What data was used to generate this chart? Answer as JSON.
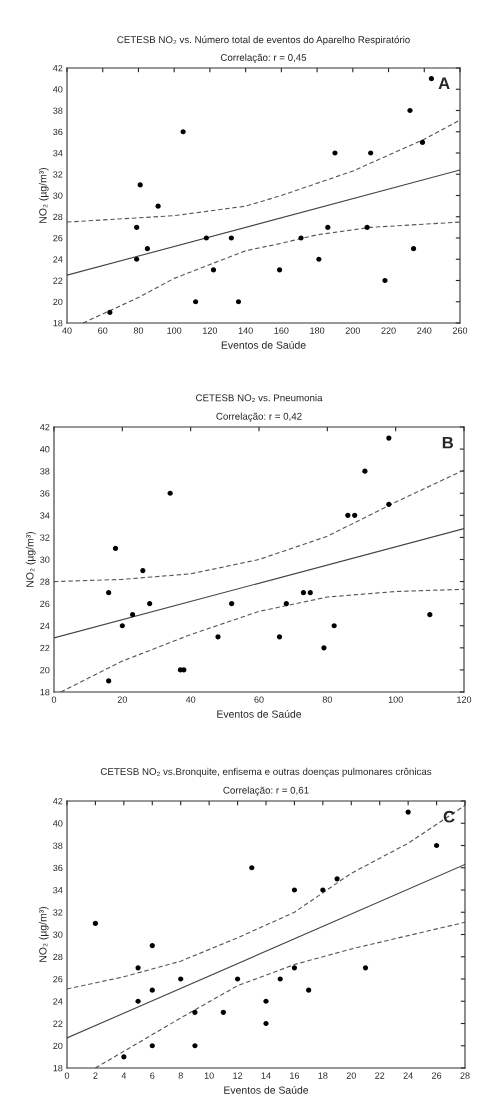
{
  "chart_data": [
    {
      "type": "scatter",
      "title": "CETESB NO₂ vs. Número total de eventos do Aparelho Respiratório",
      "subtitle": "Correlação: r = 0,45",
      "xlabel": "Eventos de Saúde",
      "ylabel": "NO₂ (µg/m³)",
      "annotations": [
        "A"
      ],
      "xlim": [
        40,
        260
      ],
      "xticks": [
        40,
        60,
        80,
        100,
        120,
        140,
        160,
        180,
        200,
        220,
        240,
        260
      ],
      "ylim": [
        18,
        42
      ],
      "yticks": [
        18,
        20,
        22,
        24,
        26,
        28,
        30,
        32,
        34,
        36,
        38,
        40,
        42
      ],
      "series": [
        {
          "marker": "circle",
          "color": "#000000",
          "x": [
            64,
            79,
            79,
            81,
            85,
            91,
            105,
            112,
            118,
            122,
            132,
            136,
            159,
            171,
            181,
            186,
            190,
            208,
            210,
            218,
            232,
            234,
            239,
            244
          ],
          "values": [
            19,
            24,
            27,
            31,
            25,
            29,
            36,
            20,
            26,
            23,
            26,
            20,
            23,
            26,
            24,
            27,
            34,
            27,
            34,
            22,
            38,
            25,
            35,
            41
          ]
        },
        {
          "type": "line",
          "line_style": "solid",
          "color": "#444444",
          "x": [
            40,
            260
          ],
          "values": [
            22.5,
            32.4
          ]
        },
        {
          "type": "line",
          "line_style": "dashed",
          "color": "#555555",
          "x": [
            40,
            100,
            140,
            160,
            200,
            240,
            260
          ],
          "values": [
            27.5,
            28.1,
            29,
            30,
            32.3,
            35.3,
            37.1
          ]
        },
        {
          "type": "line",
          "line_style": "dashed",
          "color": "#555555",
          "x": [
            49,
            80,
            100,
            120,
            140,
            160,
            180,
            210,
            260
          ],
          "values": [
            18,
            20.4,
            22.2,
            23.5,
            24.8,
            25.5,
            26.3,
            27,
            27.5
          ]
        }
      ]
    },
    {
      "type": "scatter",
      "title": "CETESB NO₂ vs. Pneumonia",
      "subtitle": "Correlação: r = 0,42",
      "xlabel": "Eventos de Saúde",
      "ylabel": "NO₂ (µg/m³)",
      "annotations": [
        "B"
      ],
      "xlim": [
        0,
        120
      ],
      "xticks": [
        0,
        20,
        40,
        60,
        80,
        100,
        120
      ],
      "ylim": [
        18,
        42
      ],
      "yticks": [
        18,
        20,
        22,
        24,
        26,
        28,
        30,
        32,
        34,
        36,
        38,
        40,
        42
      ],
      "series": [
        {
          "marker": "circle",
          "color": "#000000",
          "x": [
            16,
            16,
            18,
            20,
            23,
            26,
            28,
            34,
            37,
            38,
            48,
            52,
            66,
            68,
            73,
            75,
            79,
            82,
            86,
            88,
            91,
            98,
            98,
            110
          ],
          "values": [
            19,
            27,
            31,
            24,
            25,
            29,
            26,
            36,
            20,
            20,
            23,
            26,
            23,
            26,
            27,
            27,
            22,
            24,
            34,
            34,
            38,
            35,
            41,
            25
          ]
        },
        {
          "type": "line",
          "line_style": "solid",
          "color": "#444444",
          "x": [
            0,
            120
          ],
          "values": [
            22.9,
            32.8
          ]
        },
        {
          "type": "line",
          "line_style": "dashed",
          "color": "#555555",
          "x": [
            0,
            20,
            40,
            60,
            80,
            100,
            120
          ],
          "values": [
            28,
            28.2,
            28.7,
            30,
            32.1,
            35.2,
            38.1
          ]
        },
        {
          "type": "line",
          "line_style": "dashed",
          "color": "#555555",
          "x": [
            2,
            20,
            40,
            60,
            80,
            100,
            120
          ],
          "values": [
            18,
            20.8,
            23.2,
            25.3,
            26.6,
            27.1,
            27.3
          ]
        }
      ]
    },
    {
      "type": "scatter",
      "title": "CETESB NO₂ vs.Bronquite, enfisema e outras doenças pulmonares crônicas",
      "subtitle": "Correlação: r = 0,61",
      "xlabel": "Eventos de Saúde",
      "ylabel": "NO₂ (µg/m³)",
      "annotations": [
        "C"
      ],
      "xlim": [
        0,
        28
      ],
      "xticks": [
        0,
        2,
        4,
        6,
        8,
        10,
        12,
        14,
        16,
        18,
        20,
        22,
        24,
        26,
        28
      ],
      "ylim": [
        18,
        42
      ],
      "yticks": [
        18,
        20,
        22,
        24,
        26,
        28,
        30,
        32,
        34,
        36,
        38,
        40,
        42
      ],
      "series": [
        {
          "marker": "circle",
          "color": "#000000",
          "x": [
            2,
            4,
            5,
            5,
            6,
            6,
            6,
            8,
            9,
            9,
            11,
            12,
            13,
            14,
            14,
            15,
            16,
            16,
            17,
            18,
            19,
            21,
            24,
            26
          ],
          "values": [
            31,
            19,
            27,
            24,
            29,
            25,
            20,
            26,
            23,
            20,
            23,
            26,
            36,
            24,
            22,
            26,
            34,
            27,
            25,
            34,
            35,
            27,
            41,
            38
          ]
        },
        {
          "type": "line",
          "line_style": "solid",
          "color": "#444444",
          "x": [
            0,
            28
          ],
          "values": [
            20.7,
            36.3
          ]
        },
        {
          "type": "line",
          "line_style": "dashed",
          "color": "#555555",
          "x": [
            0,
            4,
            8,
            12,
            16,
            20,
            24,
            28
          ],
          "values": [
            25.1,
            26.2,
            27.6,
            29.7,
            32,
            35.5,
            38.2,
            41.6
          ]
        },
        {
          "type": "line",
          "line_style": "dashed",
          "color": "#555555",
          "x": [
            2,
            4,
            8,
            12,
            16,
            20,
            24,
            28
          ],
          "values": [
            18,
            19.5,
            22.5,
            25.4,
            27.3,
            28.7,
            29.9,
            31.1
          ]
        }
      ]
    }
  ]
}
